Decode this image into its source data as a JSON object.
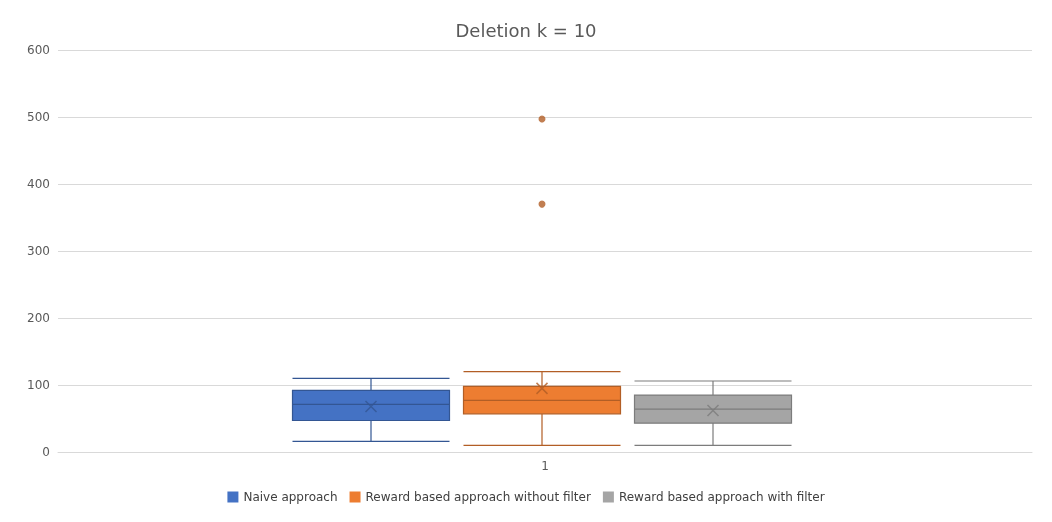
{
  "chart_data": {
    "type": "box",
    "title": "Deletion k = 10",
    "categories": [
      "1"
    ],
    "ylim": [
      0,
      600
    ],
    "yticks": [
      0,
      100,
      200,
      300,
      400,
      500,
      600
    ],
    "grid": "y",
    "legend": "bottom",
    "series": [
      {
        "name": "Naive approach",
        "color": "#4472c4",
        "boxes": [
          {
            "low": 16,
            "q1": 47,
            "median": 71,
            "q3": 92,
            "high": 110,
            "mean": 68
          }
        ]
      },
      {
        "name": "Reward based approach without filter",
        "color": "#ed7d31",
        "boxes": [
          {
            "low": 10,
            "q1": 57,
            "median": 77,
            "q3": 98,
            "high": 120,
            "mean": 95,
            "outliers": [
              370,
              497
            ]
          }
        ]
      },
      {
        "name": "Reward based approach with filter",
        "color": "#a5a5a5",
        "boxes": [
          {
            "low": 10,
            "q1": 43,
            "median": 64,
            "q3": 85,
            "high": 106,
            "mean": 62
          }
        ]
      }
    ]
  }
}
